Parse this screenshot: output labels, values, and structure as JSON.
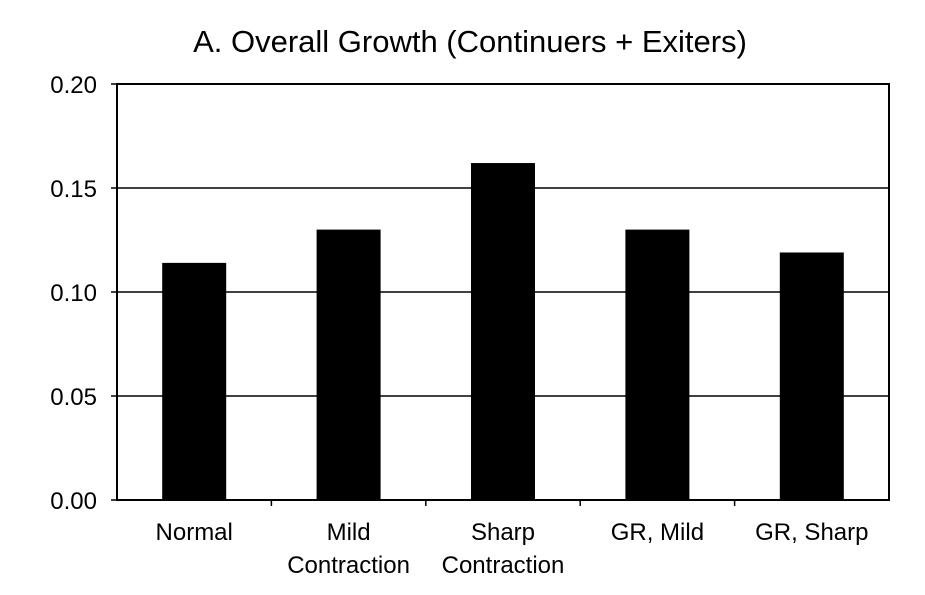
{
  "chart_data": {
    "type": "bar",
    "title": "A. Overall Growth (Continuers + Exiters)",
    "xlabel": "",
    "ylabel": "",
    "categories": [
      [
        "Normal"
      ],
      [
        "Mild",
        "Contraction"
      ],
      [
        "Sharp",
        "Contraction"
      ],
      [
        "GR, Mild"
      ],
      [
        "GR, Sharp"
      ]
    ],
    "values": [
      0.114,
      0.13,
      0.162,
      0.13,
      0.119
    ],
    "ylim": [
      0,
      0.2
    ],
    "yticks": [
      0.0,
      0.05,
      0.1,
      0.15,
      0.2
    ],
    "ytick_labels": [
      "0.00",
      "0.05",
      "0.10",
      "0.15",
      "0.20"
    ],
    "grid": true,
    "legend": "none",
    "bar_color": "#000000"
  }
}
